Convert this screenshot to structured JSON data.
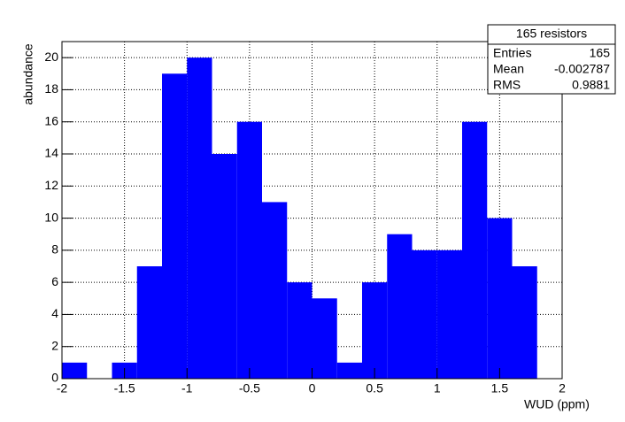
{
  "chart_data": {
    "type": "histogram",
    "xlabel": "WUD (ppm)",
    "ylabel": "abundance",
    "bins": [
      -2,
      -1.8,
      -1.6,
      -1.4,
      -1.2,
      -1,
      -0.8,
      -0.6,
      -0.4,
      -0.2,
      0,
      0.2,
      0.4,
      0.6,
      0.8,
      1,
      1.2,
      1.4,
      1.6,
      1.8,
      2
    ],
    "values": [
      1,
      0,
      1,
      7,
      19,
      20,
      14,
      16,
      11,
      6,
      5,
      1,
      6,
      9,
      8,
      8,
      16,
      10,
      7,
      0
    ],
    "color": "#0000ff",
    "xlim": [
      -2,
      2
    ],
    "xticks": [
      -2,
      -1.5,
      -1,
      -0.5,
      0,
      0.5,
      1,
      1.5,
      2
    ],
    "ylim": [
      0,
      21
    ],
    "yticks": [
      0,
      2,
      4,
      6,
      8,
      10,
      12,
      14,
      16,
      18,
      20
    ],
    "grid": true,
    "stats": {
      "title": "165 resistors",
      "rows": [
        {
          "label": "Entries",
          "value": 165
        },
        {
          "label": "Mean",
          "value": -0.002787
        },
        {
          "label": "RMS",
          "value": 0.9881
        }
      ]
    }
  }
}
